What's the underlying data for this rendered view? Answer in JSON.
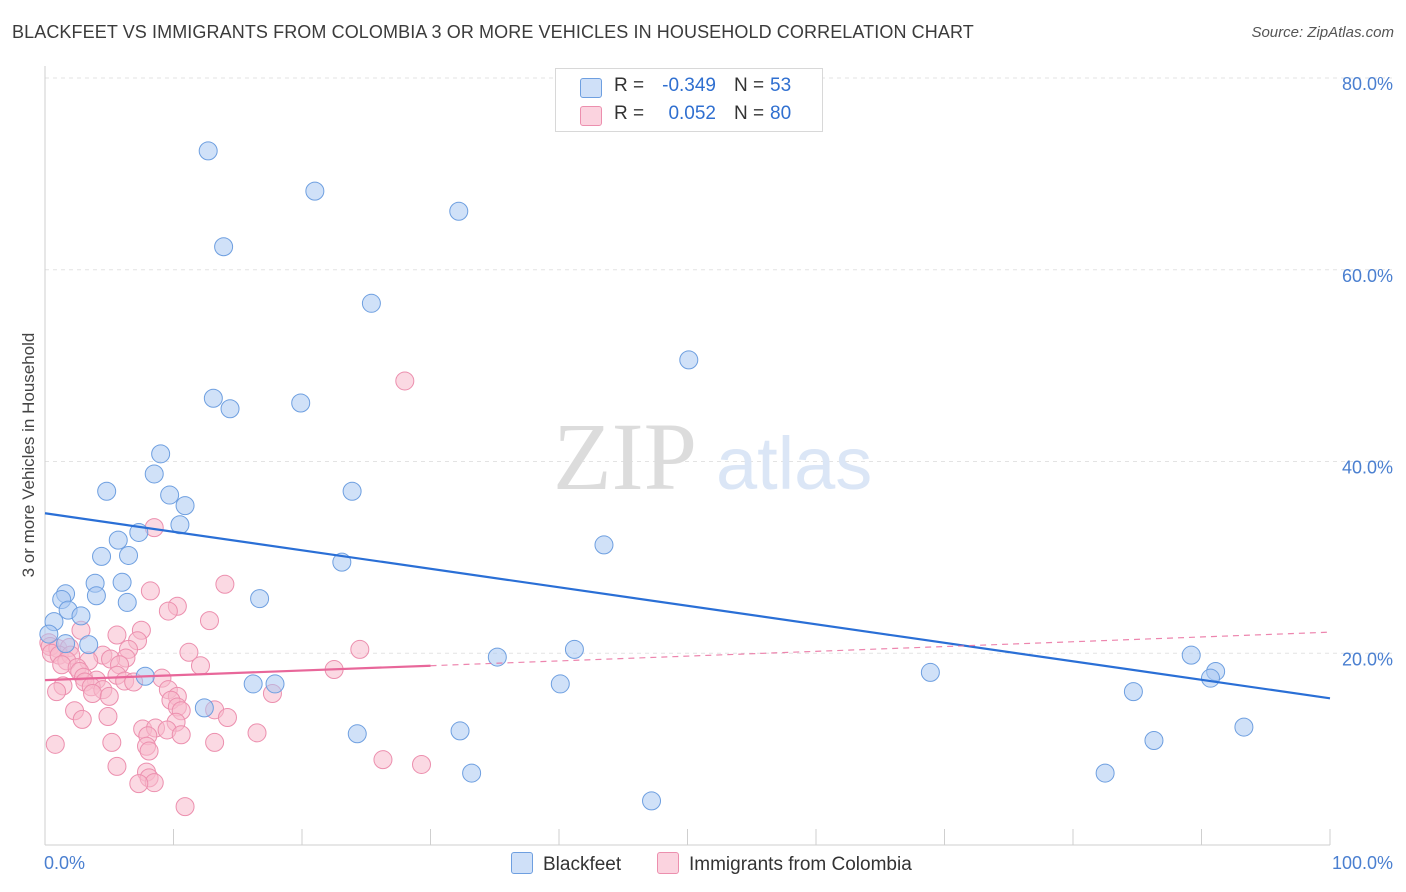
{
  "title": "BLACKFEET VS IMMIGRANTS FROM COLOMBIA 3 OR MORE VEHICLES IN HOUSEHOLD CORRELATION CHART",
  "source": "Source: ZipAtlas.com",
  "watermark": {
    "zip": "ZIP",
    "atlas": "atlas"
  },
  "legend": {
    "rows": [
      {
        "r_label": "R =",
        "r_value": "-0.349",
        "n_label": "N =",
        "n_value": "53",
        "color": "#a9c8f2"
      },
      {
        "r_label": "R =",
        "r_value": "0.052",
        "n_label": "N =",
        "n_value": "80",
        "color": "#f7b9cc"
      }
    ]
  },
  "bottom_legend": [
    {
      "label": "Blackfeet",
      "color": "#a9c8f2"
    },
    {
      "label": "Immigrants from Colombia",
      "color": "#f7b9cc"
    }
  ],
  "colors": {
    "blue_fill": "#a9c8f2",
    "blue_stroke": "#6e9fe0",
    "blue_line": "#2a6fd6",
    "pink_fill": "#f7b9cc",
    "pink_stroke": "#ec8fae",
    "pink_line": "#e8679a",
    "tick_text": "#4a7fd0",
    "grid": "#e3e3e3"
  },
  "chart_data": {
    "type": "scatter",
    "title": "BLACKFEET VS IMMIGRANTS FROM COLOMBIA 3 OR MORE VEHICLES IN HOUSEHOLD CORRELATION CHART",
    "xlabel": "",
    "ylabel": "3 or more Vehicles in Household",
    "xlim": [
      0,
      100
    ],
    "ylim": [
      0,
      80
    ],
    "x_tick_labels": [
      {
        "value": 0,
        "label": "0.0%"
      },
      {
        "value": 100,
        "label": "100.0%"
      }
    ],
    "y_tick_labels": [
      {
        "value": 20,
        "label": "20.0%"
      },
      {
        "value": 40,
        "label": "40.0%"
      },
      {
        "value": 60,
        "label": "60.0%"
      },
      {
        "value": 80,
        "label": "80.0%"
      }
    ],
    "series": [
      {
        "name": "Blackfeet",
        "trend": {
          "x": [
            0,
            100
          ],
          "y": [
            34.6,
            15.3
          ],
          "dashed_to": null
        },
        "points": [
          [
            12.7,
            72.4
          ],
          [
            21,
            68.2
          ],
          [
            32.2,
            66.1
          ],
          [
            13.9,
            62.4
          ],
          [
            25.4,
            56.5
          ],
          [
            50.1,
            50.6
          ],
          [
            13.1,
            46.6
          ],
          [
            14.4,
            45.5
          ],
          [
            19.9,
            46.1
          ],
          [
            9,
            40.8
          ],
          [
            8.5,
            38.7
          ],
          [
            4.8,
            36.9
          ],
          [
            9.7,
            36.5
          ],
          [
            23.9,
            36.9
          ],
          [
            10.9,
            35.4
          ],
          [
            7.3,
            32.6
          ],
          [
            10.5,
            33.4
          ],
          [
            5.7,
            31.8
          ],
          [
            43.5,
            31.3
          ],
          [
            4.4,
            30.1
          ],
          [
            6.5,
            30.2
          ],
          [
            23.1,
            29.5
          ],
          [
            3.9,
            27.3
          ],
          [
            6,
            27.4
          ],
          [
            1.6,
            26.2
          ],
          [
            1.3,
            25.6
          ],
          [
            4,
            26
          ],
          [
            6.4,
            25.3
          ],
          [
            16.7,
            25.7
          ],
          [
            1.8,
            24.5
          ],
          [
            2.8,
            23.9
          ],
          [
            0.7,
            23.3
          ],
          [
            0.3,
            22
          ],
          [
            1.6,
            21
          ],
          [
            3.4,
            20.9
          ],
          [
            41.2,
            20.4
          ],
          [
            35.2,
            19.6
          ],
          [
            89.2,
            19.8
          ],
          [
            7.8,
            17.6
          ],
          [
            68.9,
            18
          ],
          [
            91.1,
            18.1
          ],
          [
            90.7,
            17.4
          ],
          [
            16.2,
            16.8
          ],
          [
            17.9,
            16.8
          ],
          [
            40.1,
            16.8
          ],
          [
            84.7,
            16
          ],
          [
            12.4,
            14.3
          ],
          [
            24.3,
            11.6
          ],
          [
            32.3,
            11.9
          ],
          [
            93.3,
            12.3
          ],
          [
            86.3,
            10.9
          ],
          [
            33.2,
            7.5
          ],
          [
            82.5,
            7.5
          ],
          [
            47.2,
            4.6
          ]
        ]
      },
      {
        "name": "Immigrants from Colombia",
        "trend": {
          "x": [
            0,
            100
          ],
          "y": [
            17.2,
            22.2
          ],
          "solid_until_x": 30
        },
        "points": [
          [
            28,
            48.4
          ],
          [
            8.5,
            33.1
          ],
          [
            8.2,
            26.5
          ],
          [
            14,
            27.2
          ],
          [
            10.3,
            24.9
          ],
          [
            9.6,
            24.4
          ],
          [
            12.8,
            23.4
          ],
          [
            2.8,
            22.4
          ],
          [
            7.5,
            22.4
          ],
          [
            5.6,
            21.9
          ],
          [
            7.2,
            21.3
          ],
          [
            0.3,
            21.1
          ],
          [
            0.4,
            20.7
          ],
          [
            1,
            20.5
          ],
          [
            1.9,
            20.6
          ],
          [
            6.5,
            20.4
          ],
          [
            24.5,
            20.4
          ],
          [
            11.2,
            20.1
          ],
          [
            0.5,
            20
          ],
          [
            1.1,
            19.8
          ],
          [
            2,
            19.8
          ],
          [
            4.5,
            19.8
          ],
          [
            6.3,
            19.5
          ],
          [
            1.7,
            19.2
          ],
          [
            3.4,
            19.2
          ],
          [
            5.1,
            19.4
          ],
          [
            1.3,
            18.8
          ],
          [
            2.5,
            18.5
          ],
          [
            5.8,
            18.8
          ],
          [
            12.1,
            18.7
          ],
          [
            2.7,
            18.1
          ],
          [
            5.6,
            17.7
          ],
          [
            22.5,
            18.3
          ],
          [
            3,
            17.5
          ],
          [
            4,
            17.2
          ],
          [
            6.2,
            17.1
          ],
          [
            9.1,
            17.4
          ],
          [
            3.1,
            17
          ],
          [
            6.9,
            17
          ],
          [
            1.4,
            16.6
          ],
          [
            3.6,
            16.5
          ],
          [
            4.5,
            16.2
          ],
          [
            9.6,
            16.2
          ],
          [
            0.9,
            16
          ],
          [
            3.7,
            15.8
          ],
          [
            5,
            15.5
          ],
          [
            10.3,
            15.5
          ],
          [
            17.7,
            15.8
          ],
          [
            9.8,
            15.1
          ],
          [
            10.3,
            14.4
          ],
          [
            2.3,
            14
          ],
          [
            10.6,
            14
          ],
          [
            13.2,
            14.1
          ],
          [
            4.9,
            13.4
          ],
          [
            2.9,
            13.1
          ],
          [
            10.2,
            12.8
          ],
          [
            14.2,
            13.3
          ],
          [
            7.6,
            12.1
          ],
          [
            8.6,
            12.2
          ],
          [
            9.5,
            12
          ],
          [
            16.5,
            11.7
          ],
          [
            8,
            11.4
          ],
          [
            10.6,
            11.5
          ],
          [
            0.8,
            10.5
          ],
          [
            5.2,
            10.7
          ],
          [
            7.9,
            10.3
          ],
          [
            13.2,
            10.7
          ],
          [
            8.1,
            9.8
          ],
          [
            26.3,
            8.9
          ],
          [
            29.3,
            8.4
          ],
          [
            5.6,
            8.2
          ],
          [
            7.9,
            7.6
          ],
          [
            8.1,
            7
          ],
          [
            8.5,
            6.5
          ],
          [
            7.3,
            6.4
          ],
          [
            10.9,
            4
          ]
        ]
      }
    ]
  }
}
